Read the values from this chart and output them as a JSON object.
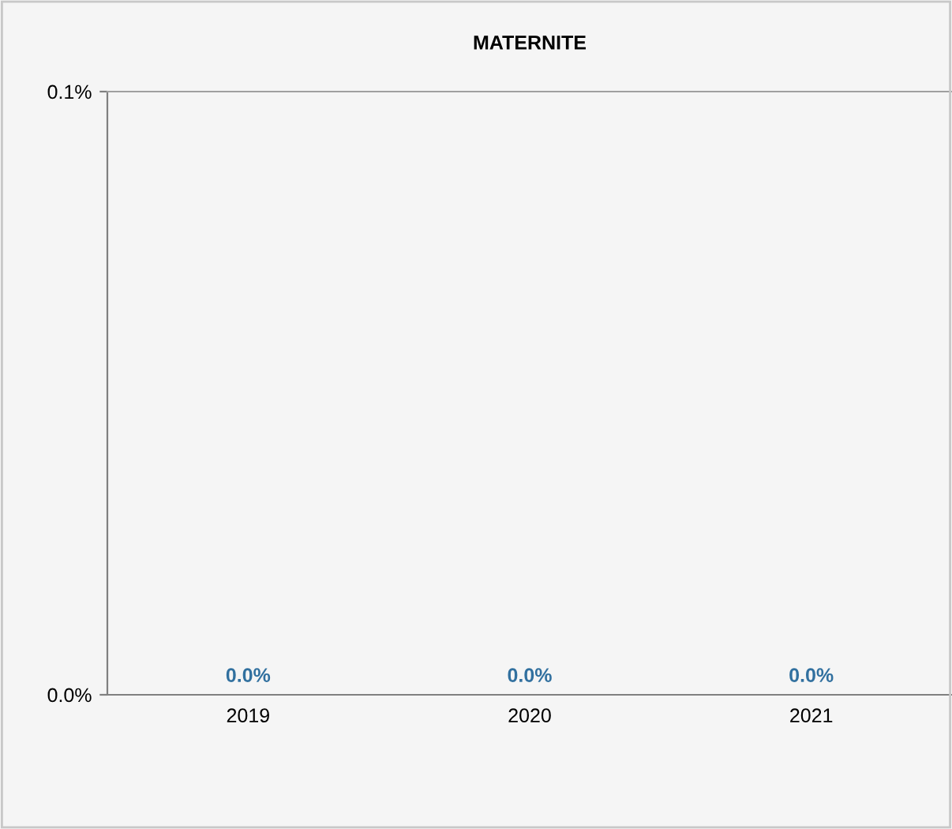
{
  "chart_data": {
    "type": "bar",
    "title": "MATERNITE",
    "categories": [
      "2019",
      "2020",
      "2021"
    ],
    "values": [
      0,
      0,
      0
    ],
    "color": "#31709f",
    "value_labels": [
      "0.0%",
      "0.0%",
      "0.0%"
    ],
    "ylim": [
      0,
      0.1
    ],
    "yticks": [
      {
        "value": 0,
        "label": "0.0%"
      },
      {
        "value": 0.1,
        "label": "0.1%"
      }
    ]
  }
}
